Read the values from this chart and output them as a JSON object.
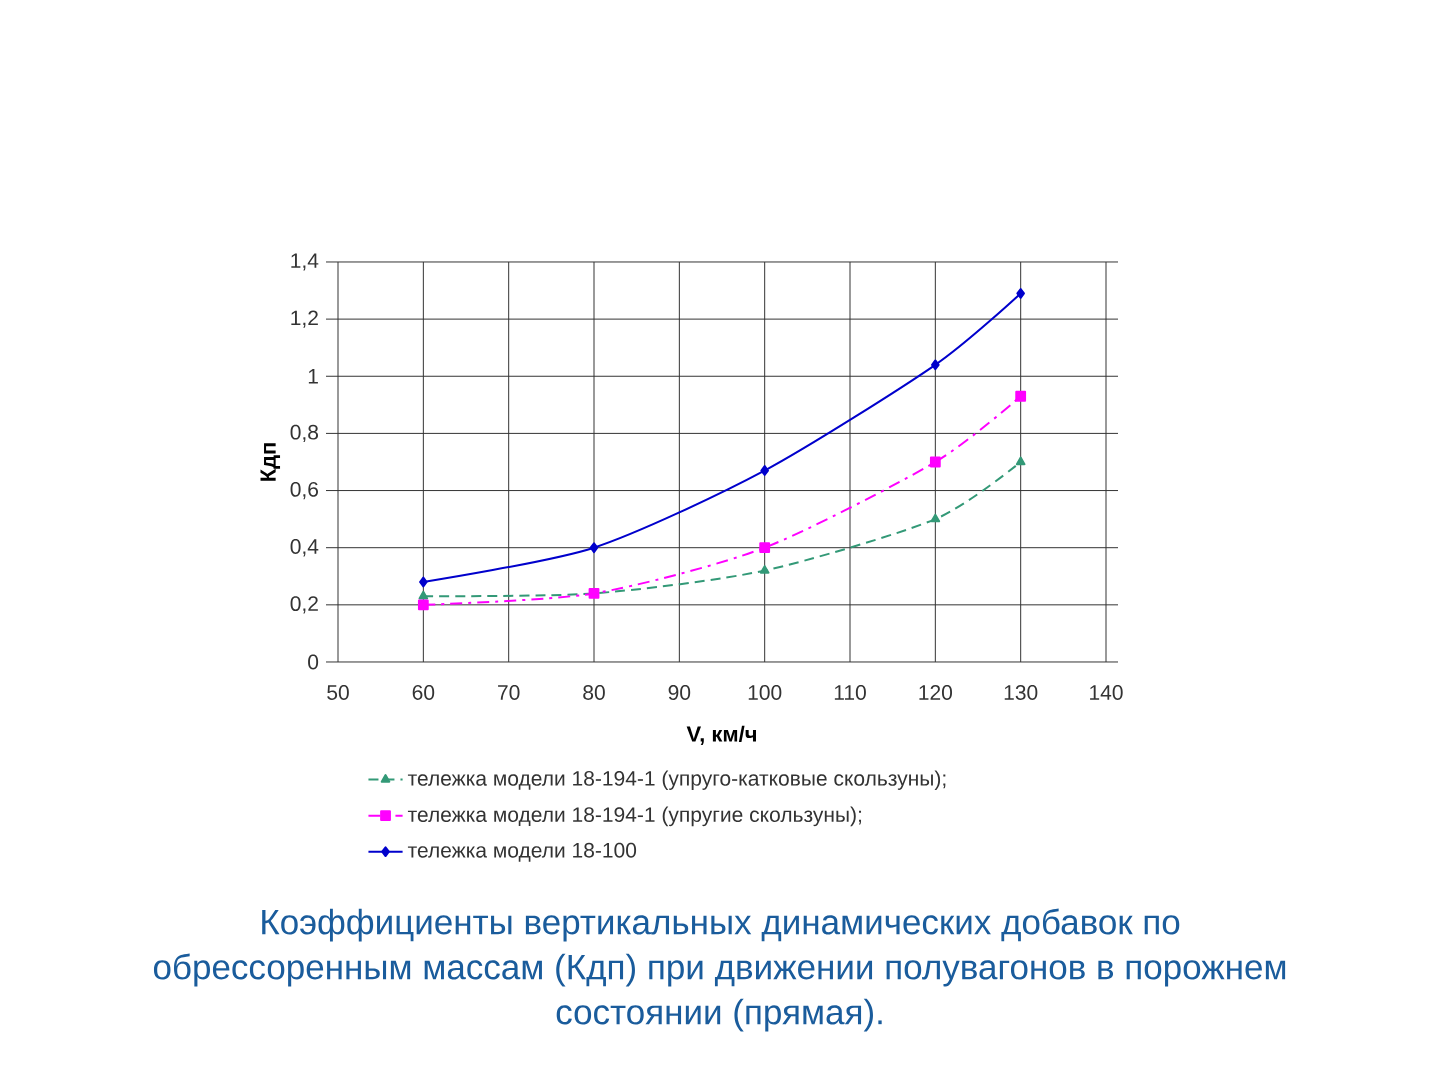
{
  "chart_data": {
    "type": "line",
    "xlabel": "V, км/ч",
    "ylabel": "Кдп",
    "annotations": [
      "Коэффициенты вертикальных динамических добавок по обрессоренным массам (Кдп) при движении полувагонов в порожнем состоянии (прямая)."
    ],
    "x": [
      60,
      80,
      100,
      120,
      130
    ],
    "xlim": [
      50,
      140
    ],
    "xticks": [
      50,
      60,
      70,
      80,
      90,
      100,
      110,
      120,
      130,
      140
    ],
    "ylim": [
      0,
      1.4
    ],
    "yticks": [
      0,
      {
        "value": 0.2,
        "label": "0,2"
      },
      {
        "value": 0.4,
        "label": "0,4"
      },
      {
        "value": 0.6,
        "label": "0,6"
      },
      {
        "value": 0.8,
        "label": "0,8"
      },
      1,
      {
        "value": 1.2,
        "label": "1,2"
      },
      {
        "value": 1.4,
        "label": "1,4"
      }
    ],
    "grid": true,
    "legend": "bottom",
    "series": [
      {
        "name": "тележка модели 18-194-1 (упруго-катковые скользуны);",
        "color": "#339977",
        "marker": "triangle",
        "line_style": "dashed",
        "values": [
          0.23,
          0.24,
          0.32,
          0.5,
          0.7
        ]
      },
      {
        "name": "тележка модели 18-194-1 (упругие скользуны);",
        "color": "#ff00ff",
        "marker": "square",
        "line_style": "dashdot",
        "values": [
          0.2,
          0.24,
          0.4,
          0.7,
          0.93
        ]
      },
      {
        "name": "тележка модели 18-100",
        "color": "#0000cc",
        "marker": "diamond",
        "line_style": "solid",
        "values": [
          0.28,
          0.4,
          0.67,
          1.04,
          1.29
        ]
      }
    ]
  }
}
